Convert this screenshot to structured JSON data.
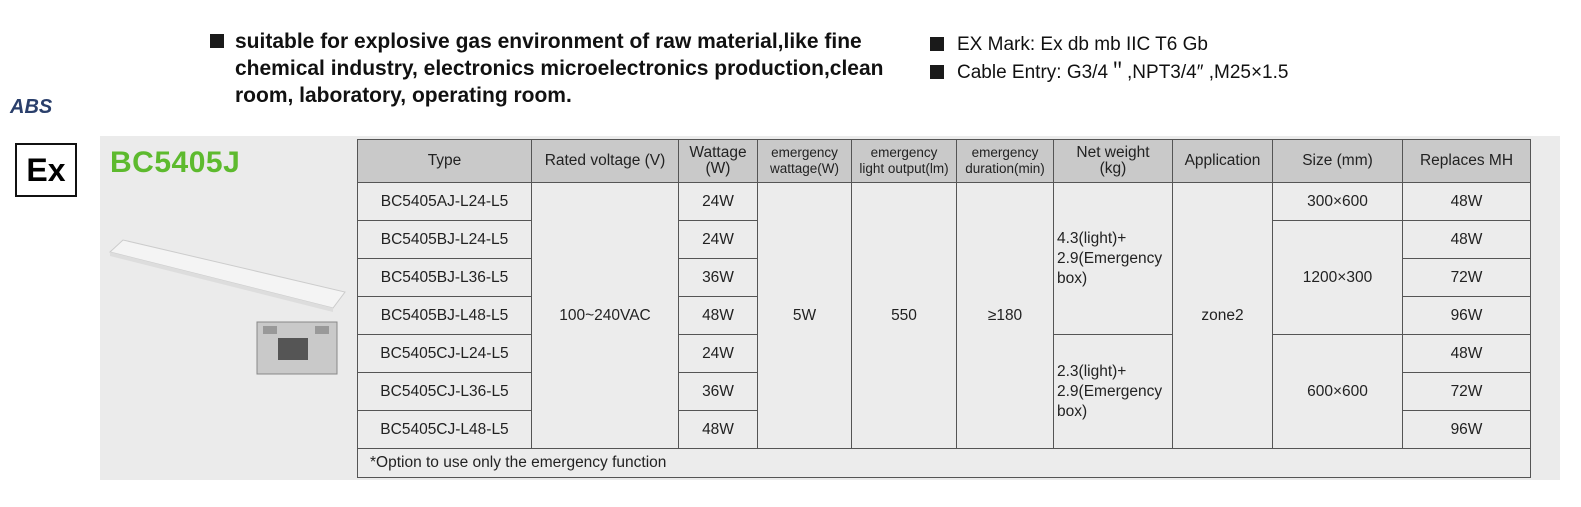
{
  "logo": "ABS",
  "ex_mark": "Ex",
  "model": "BC5405J",
  "bullets_left": [
    "suitable for explosive gas environment of raw material,like fine chemical industry, electronics microelectronics production,clean room, laboratory, operating room."
  ],
  "bullets_right": [
    "EX Mark: Ex db mb IIC T6 Gb",
    "Cable Entry: G3/4＂,NPT3/4″ ,M25×1.5"
  ],
  "table": {
    "headers": [
      "Type",
      "Rated voltage (V)",
      "Wattage\n(W)",
      "emergency\nwattage(W)",
      "emergency\nlight output(lm)",
      "emergency\nduration(min)",
      "Net weight\n(kg)",
      "Application",
      "Size (mm)",
      "Replaces MH"
    ],
    "rows": [
      {
        "type": "BC5405AJ-L24-L5",
        "wattage": "24W",
        "replaces": "48W"
      },
      {
        "type": "BC5405BJ-L24-L5",
        "wattage": "24W",
        "replaces": "48W"
      },
      {
        "type": "BC5405BJ-L36-L5",
        "wattage": "36W",
        "replaces": "72W"
      },
      {
        "type": "BC5405BJ-L48-L5",
        "wattage": "48W",
        "replaces": "96W"
      },
      {
        "type": "BC5405CJ-L24-L5",
        "wattage": "24W",
        "replaces": "48W"
      },
      {
        "type": "BC5405CJ-L36-L5",
        "wattage": "36W",
        "replaces": "72W"
      },
      {
        "type": "BC5405CJ-L48-L5",
        "wattage": "48W",
        "replaces": "96W"
      }
    ],
    "voltage": "100~240VAC",
    "emergency_wattage": "5W",
    "emergency_output": "550",
    "emergency_duration": "≥180",
    "application": "zone2",
    "weights": [
      "4.3(light)+\n2.9(Emergency\n box)",
      "2.3(light)+\n2.9(Emergency\n box)"
    ],
    "sizes": [
      "300×600",
      "1200×300",
      "600×600"
    ],
    "footnote": "*Option to use only the emergency function"
  }
}
